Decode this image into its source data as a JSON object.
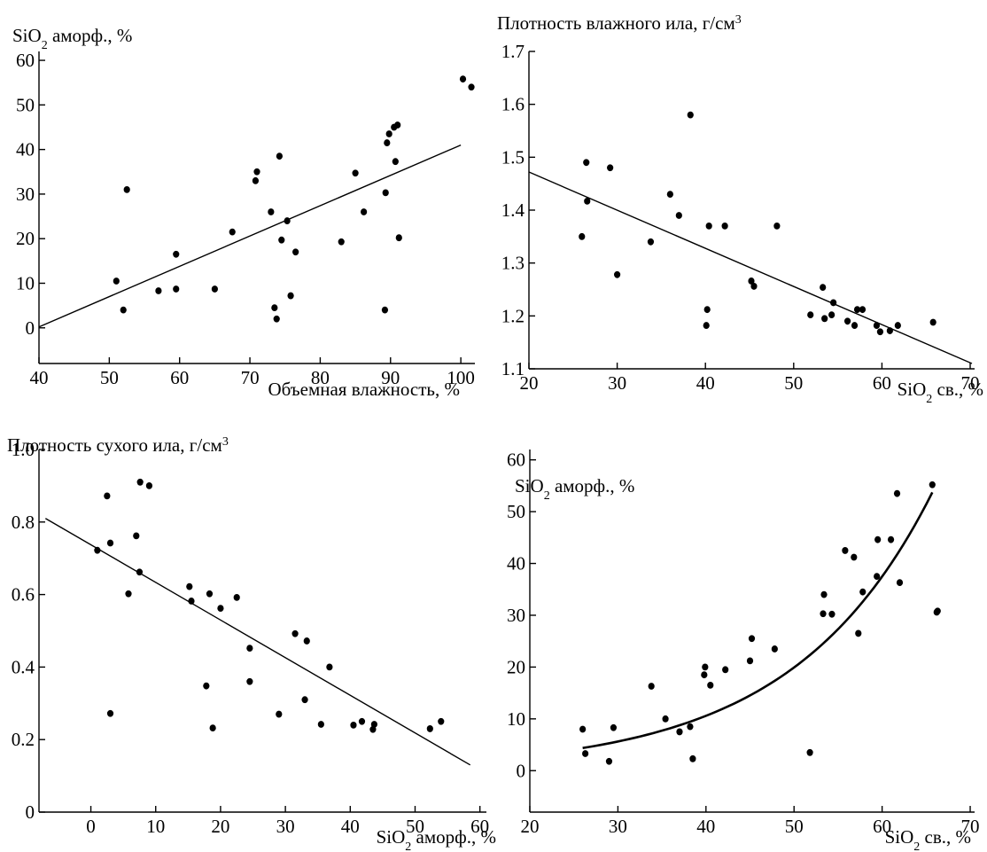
{
  "chart_data": [
    {
      "type": "scatter",
      "ylabel": "SiO₂ аморф., %",
      "xlabel": "Объемная влажность, %",
      "xlim": [
        40,
        102
      ],
      "ylim": [
        -8,
        62
      ],
      "xticks": [
        40,
        50,
        60,
        70,
        80,
        90,
        100
      ],
      "yticks": [
        0,
        10,
        20,
        30,
        40,
        50,
        60
      ],
      "points": [
        [
          51,
          10.5
        ],
        [
          52,
          4
        ],
        [
          52.5,
          31
        ],
        [
          57,
          8.3
        ],
        [
          59.5,
          8.7
        ],
        [
          59.5,
          16.5
        ],
        [
          65,
          8.7
        ],
        [
          67.5,
          21.5
        ],
        [
          70.8,
          33
        ],
        [
          71,
          35
        ],
        [
          73,
          26
        ],
        [
          73.5,
          4.5
        ],
        [
          73.8,
          2
        ],
        [
          74.2,
          38.5
        ],
        [
          74.5,
          19.7
        ],
        [
          75.3,
          24
        ],
        [
          75.8,
          7.2
        ],
        [
          76.5,
          17
        ],
        [
          83,
          19.3
        ],
        [
          85,
          34.7
        ],
        [
          86.2,
          26
        ],
        [
          89.2,
          4
        ],
        [
          89.3,
          30.3
        ],
        [
          89.5,
          41.5
        ],
        [
          89.8,
          43.5
        ],
        [
          90.5,
          45
        ],
        [
          90.7,
          37.3
        ],
        [
          91,
          45.5
        ],
        [
          91.2,
          20.2
        ],
        [
          100.3,
          55.8
        ],
        [
          101.5,
          54
        ]
      ],
      "fit": {
        "kind": "linear",
        "from": [
          40,
          0.2
        ],
        "to": [
          100,
          41
        ]
      }
    },
    {
      "type": "scatter",
      "ylabel": "Плотность влажного ила, г/см³",
      "xlabel": "SiO₂ св., %",
      "xlim": [
        20,
        70.5
      ],
      "ylim": [
        1.1,
        1.7
      ],
      "xticks": [
        20,
        30,
        40,
        50,
        60,
        70
      ],
      "yticks": [
        1.1,
        1.2,
        1.3,
        1.4,
        1.5,
        1.6,
        1.7
      ],
      "points": [
        [
          26,
          1.35
        ],
        [
          26.5,
          1.49
        ],
        [
          26.6,
          1.417
        ],
        [
          29.2,
          1.48
        ],
        [
          30,
          1.278
        ],
        [
          33.8,
          1.34
        ],
        [
          36,
          1.43
        ],
        [
          37,
          1.39
        ],
        [
          38.3,
          1.58
        ],
        [
          40.1,
          1.182
        ],
        [
          40.2,
          1.212
        ],
        [
          40.4,
          1.37
        ],
        [
          42.2,
          1.37
        ],
        [
          45.2,
          1.266
        ],
        [
          45.5,
          1.256
        ],
        [
          48.1,
          1.37
        ],
        [
          51.9,
          1.202
        ],
        [
          53.3,
          1.254
        ],
        [
          53.5,
          1.195
        ],
        [
          54.3,
          1.202
        ],
        [
          54.5,
          1.225
        ],
        [
          56.1,
          1.19
        ],
        [
          56.9,
          1.182
        ],
        [
          57.2,
          1.212
        ],
        [
          57.8,
          1.212
        ],
        [
          59.4,
          1.182
        ],
        [
          59.8,
          1.17
        ],
        [
          60.9,
          1.172
        ],
        [
          61.8,
          1.182
        ],
        [
          65.8,
          1.188
        ]
      ],
      "fit": {
        "kind": "linear",
        "from": [
          20,
          1.472
        ],
        "to": [
          70.2,
          1.11
        ]
      }
    },
    {
      "type": "scatter",
      "ylabel": "Плотность сухого ила, г/см³",
      "xlabel": "SiO₂ аморф., %",
      "xlim": [
        -8,
        61
      ],
      "ylim": [
        0,
        1.0
      ],
      "xticks": [
        0,
        10,
        20,
        30,
        40,
        50,
        60
      ],
      "yticks": [
        0,
        0.2,
        0.4,
        0.6,
        0.8,
        1.0
      ],
      "ytick_labels": [
        "0",
        "0.2",
        "0.4",
        "0.6",
        "0.8",
        "1.0"
      ],
      "points": [
        [
          1,
          0.722
        ],
        [
          2.5,
          0.872
        ],
        [
          3,
          0.742
        ],
        [
          3,
          0.272
        ],
        [
          5.8,
          0.602
        ],
        [
          7,
          0.762
        ],
        [
          7.5,
          0.662
        ],
        [
          7.6,
          0.91
        ],
        [
          9,
          0.9
        ],
        [
          15.2,
          0.622
        ],
        [
          15.5,
          0.582
        ],
        [
          17.8,
          0.348
        ],
        [
          18.3,
          0.602
        ],
        [
          18.8,
          0.232
        ],
        [
          20,
          0.562
        ],
        [
          22.5,
          0.592
        ],
        [
          24.5,
          0.452
        ],
        [
          24.5,
          0.36
        ],
        [
          29,
          0.27
        ],
        [
          31.5,
          0.492
        ],
        [
          33,
          0.31
        ],
        [
          33.3,
          0.472
        ],
        [
          35.5,
          0.242
        ],
        [
          36.8,
          0.4
        ],
        [
          40.5,
          0.24
        ],
        [
          41.8,
          0.25
        ],
        [
          43.5,
          0.228
        ],
        [
          43.7,
          0.242
        ],
        [
          52.3,
          0.23
        ],
        [
          54,
          0.25
        ]
      ],
      "fit": {
        "kind": "linear",
        "from": [
          -7,
          0.81
        ],
        "to": [
          58.5,
          0.13
        ]
      }
    },
    {
      "type": "scatter",
      "ylabel": "SiO₂ аморф., %",
      "xlabel": "SiO₂ св., %",
      "xlim": [
        20,
        70.5
      ],
      "ylim": [
        -8,
        62
      ],
      "xticks": [
        20,
        30,
        40,
        50,
        60,
        70
      ],
      "yticks": [
        0,
        10,
        20,
        30,
        40,
        50,
        60
      ],
      "points": [
        [
          26,
          8
        ],
        [
          26.3,
          3.3
        ],
        [
          29,
          1.8
        ],
        [
          29.5,
          8.3
        ],
        [
          33.8,
          16.3
        ],
        [
          35.4,
          10
        ],
        [
          37,
          7.5
        ],
        [
          38.2,
          8.5
        ],
        [
          38.5,
          2.3
        ],
        [
          39.8,
          18.5
        ],
        [
          39.9,
          20
        ],
        [
          40.5,
          16.5
        ],
        [
          42.2,
          19.5
        ],
        [
          45,
          21.2
        ],
        [
          45.2,
          25.5
        ],
        [
          47.8,
          23.5
        ],
        [
          51.8,
          3.5
        ],
        [
          53.3,
          30.3
        ],
        [
          53.4,
          34
        ],
        [
          54.3,
          30.2
        ],
        [
          55.8,
          42.5
        ],
        [
          56.8,
          41.2
        ],
        [
          57.3,
          26.5
        ],
        [
          57.8,
          34.5
        ],
        [
          59.4,
          37.5
        ],
        [
          59.5,
          44.6
        ],
        [
          61,
          44.6
        ],
        [
          61.7,
          53.5
        ],
        [
          62,
          36.3
        ],
        [
          65.7,
          55.2
        ],
        [
          66.3,
          30.8
        ],
        [
          66.2,
          30.6
        ]
      ],
      "fit": {
        "kind": "exponential",
        "a": 0.845,
        "b": 0.0632,
        "x_from": 26,
        "x_to": 65.7
      }
    }
  ]
}
